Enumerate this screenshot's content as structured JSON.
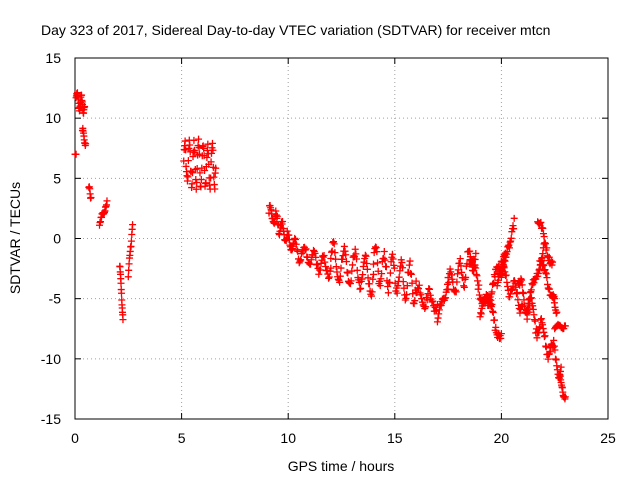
{
  "chart_data": {
    "type": "scatter",
    "title": "Day 323 of 2017, Sidereal Day-to-day VTEC variation (SDTVAR) for receiver mtcn",
    "xlabel": "GPS time / hours",
    "ylabel": "SDTVAR / TECUs",
    "xlim": [
      0,
      25
    ],
    "ylim": [
      -15,
      15
    ],
    "xticks": [
      0,
      5,
      10,
      15,
      20,
      25
    ],
    "yticks": [
      -15,
      -10,
      -5,
      0,
      5,
      10,
      15
    ],
    "grid": true,
    "marker": "+",
    "color": "#ff0000",
    "segments": [
      {
        "x0": 0.0,
        "x1": 0.05,
        "y0": 7.0,
        "y1": 7.0,
        "n": 3,
        "amp": 0.0,
        "freq": 1,
        "spread": 0.0
      },
      {
        "x0": 0.05,
        "x1": 0.45,
        "y0": 11.5,
        "y1": 11.0,
        "n": 26,
        "amp": 0.6,
        "freq": 2,
        "spread": 0.4
      },
      {
        "x0": 0.35,
        "x1": 0.5,
        "y0": 9.0,
        "y1": 7.8,
        "n": 10,
        "amp": 0.3,
        "freq": 1,
        "spread": 0.3
      },
      {
        "x0": 0.65,
        "x1": 0.75,
        "y0": 4.3,
        "y1": 3.4,
        "n": 6,
        "amp": 0.2,
        "freq": 1,
        "spread": 0.2
      },
      {
        "x0": 1.15,
        "x1": 1.5,
        "y0": 1.0,
        "y1": 3.2,
        "n": 16,
        "amp": 0.3,
        "freq": 1,
        "spread": 0.3
      },
      {
        "x0": 2.1,
        "x1": 2.25,
        "y0": -2.2,
        "y1": -6.6,
        "n": 14,
        "amp": 0.3,
        "freq": 1,
        "spread": 0.3
      },
      {
        "x0": 2.5,
        "x1": 2.7,
        "y0": -3.2,
        "y1": 1.3,
        "n": 12,
        "amp": 0.3,
        "freq": 1,
        "spread": 0.3
      },
      {
        "x0": 5.1,
        "x1": 6.6,
        "y0": 6.3,
        "y1": 6.0,
        "n": 70,
        "amp": 1.6,
        "freq": 7,
        "spread": 1.0
      },
      {
        "x0": 9.1,
        "x1": 10.2,
        "y0": 2.4,
        "y1": -0.6,
        "n": 46,
        "amp": 0.6,
        "freq": 4,
        "spread": 0.6
      },
      {
        "x0": 10.2,
        "x1": 12.0,
        "y0": -0.8,
        "y1": -2.6,
        "n": 52,
        "amp": 0.7,
        "freq": 4,
        "spread": 0.5
      },
      {
        "x0": 12.0,
        "x1": 14.0,
        "y0": -1.8,
        "y1": -3.2,
        "n": 64,
        "amp": 1.4,
        "freq": 4,
        "spread": 0.7
      },
      {
        "x0": 14.0,
        "x1": 16.0,
        "y0": -2.2,
        "y1": -3.8,
        "n": 64,
        "amp": 1.4,
        "freq": 5,
        "spread": 0.8
      },
      {
        "x0": 16.0,
        "x1": 17.0,
        "y0": -4.6,
        "y1": -5.4,
        "n": 28,
        "amp": 0.7,
        "freq": 2,
        "spread": 0.6
      },
      {
        "x0": 17.0,
        "x1": 17.5,
        "y0": -7.0,
        "y1": -3.4,
        "n": 18,
        "amp": 0.5,
        "freq": 1,
        "spread": 0.5
      },
      {
        "x0": 17.5,
        "x1": 18.8,
        "y0": -4.2,
        "y1": -1.4,
        "n": 42,
        "amp": 1.2,
        "freq": 3,
        "spread": 0.6
      },
      {
        "x0": 18.5,
        "x1": 20.0,
        "y0": -2.0,
        "y1": -8.0,
        "n": 52,
        "amp": 0.8,
        "freq": 2,
        "spread": 0.7
      },
      {
        "x0": 19.0,
        "x1": 20.2,
        "y0": -6.5,
        "y1": -1.4,
        "n": 44,
        "amp": 0.6,
        "freq": 2,
        "spread": 0.7
      },
      {
        "x0": 19.8,
        "x1": 20.6,
        "y0": -4.0,
        "y1": 1.4,
        "n": 30,
        "amp": 0.5,
        "freq": 1,
        "spread": 0.6
      },
      {
        "x0": 20.0,
        "x1": 21.0,
        "y0": -3.0,
        "y1": -5.5,
        "n": 32,
        "amp": 0.8,
        "freq": 2,
        "spread": 0.6
      },
      {
        "x0": 20.8,
        "x1": 22.8,
        "y0": -4.0,
        "y1": -11.0,
        "n": 70,
        "amp": 1.0,
        "freq": 4,
        "spread": 0.8
      },
      {
        "x0": 21.2,
        "x1": 22.0,
        "y0": -6.0,
        "y1": -0.5,
        "n": 28,
        "amp": 0.5,
        "freq": 1,
        "spread": 0.5
      },
      {
        "x0": 21.7,
        "x1": 22.4,
        "y0": 1.4,
        "y1": -2.0,
        "n": 24,
        "amp": 0.5,
        "freq": 1,
        "spread": 0.5
      },
      {
        "x0": 21.8,
        "x1": 22.5,
        "y0": -2.0,
        "y1": -5.0,
        "n": 24,
        "amp": 0.5,
        "freq": 1,
        "spread": 0.5
      },
      {
        "x0": 22.4,
        "x1": 22.6,
        "y0": -4.6,
        "y1": -6.2,
        "n": 8,
        "amp": 0.2,
        "freq": 1,
        "spread": 0.3
      },
      {
        "x0": 22.5,
        "x1": 23.0,
        "y0": -7.4,
        "y1": -7.2,
        "n": 14,
        "amp": 0.2,
        "freq": 1,
        "spread": 0.2
      },
      {
        "x0": 22.7,
        "x1": 23.0,
        "y0": -11.5,
        "y1": -13.3,
        "n": 16,
        "amp": 0.3,
        "freq": 1,
        "spread": 0.3
      }
    ]
  }
}
